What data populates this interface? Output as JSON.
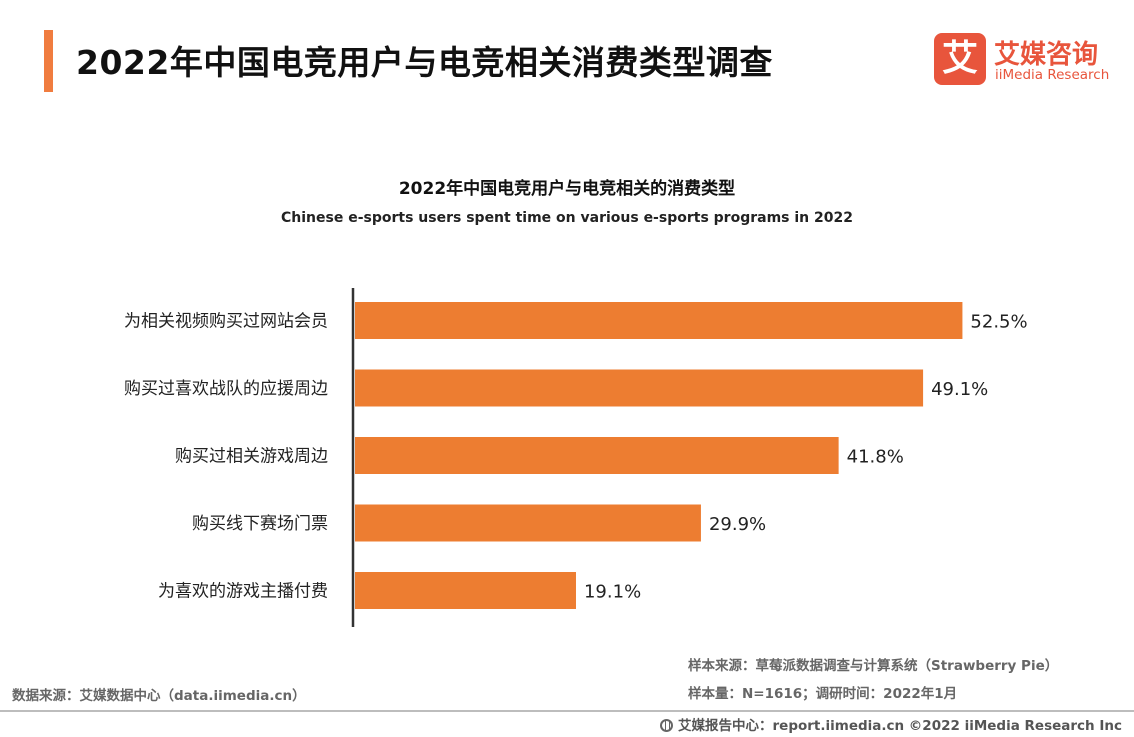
{
  "header": {
    "title": "2022年中国电竞用户与电竞相关消费类型调查",
    "accent_color": "#f07c3f"
  },
  "logo": {
    "mark": "艾",
    "name_cn": "艾媒咨询",
    "name_en": "iiMedia Research",
    "color": "#e8553c"
  },
  "chart_data": {
    "type": "bar",
    "orientation": "horizontal",
    "title": "2022年中国电竞用户与电竞相关的消费类型",
    "subtitle": "Chinese e-sports users spent time on various e-sports programs in 2022",
    "categories": [
      "为相关视频购买过网站会员",
      "购买过喜欢战队的应援周边",
      "购买过相关游戏周边",
      "购买线下赛场门票",
      "为喜欢的游戏主播付费"
    ],
    "values": [
      52.5,
      49.1,
      41.8,
      29.9,
      19.1
    ],
    "value_labels": [
      "52.5%",
      "49.1%",
      "41.8%",
      "29.9%",
      "19.1%"
    ],
    "unit": "%",
    "bar_color": "#ed7d31",
    "grid": false,
    "legend": "none"
  },
  "notes": {
    "sample_source": "样本来源：草莓派数据调查与计算系统（Strawberry Pie）",
    "sample_size": "样本量：N=1616；调研时间：2022年1月",
    "data_source": "数据来源：艾媒数据中心（data.iimedia.cn）"
  },
  "footer": {
    "text": "艾媒报告中心：report.iimedia.cn  ©2022  iiMedia Research  Inc"
  }
}
